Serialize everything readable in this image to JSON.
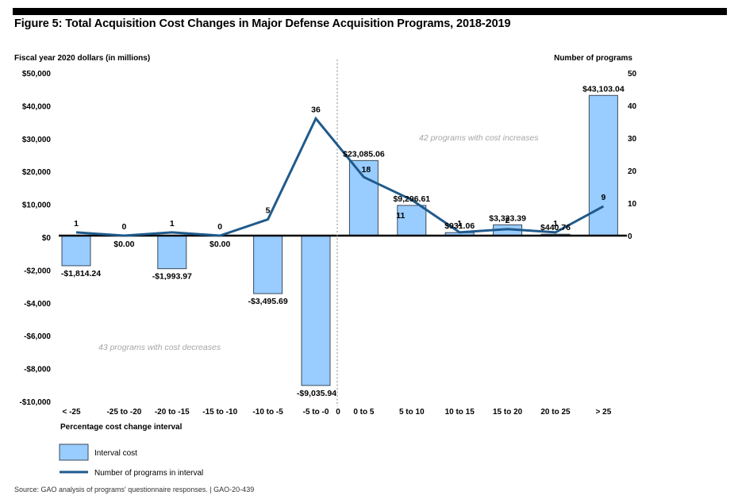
{
  "figure": {
    "title": "Figure 5: Total Acquisition Cost Changes in Major Defense Acquisition Programs, 2018-2019",
    "source": "Source: GAO analysis of programs' questionnaire responses.  |  GAO-20-439"
  },
  "colors": {
    "bar_fill": "#99ccff",
    "bar_stroke": "#3a4a5a",
    "line": "#1f5a8c",
    "zero_line": "#000000",
    "divider": "#999999",
    "note": "#a6a6a6"
  },
  "chart_data": {
    "type": "bar",
    "title": "Figure 5: Total Acquisition Cost Changes in Major Defense Acquisition Programs, 2018-2019",
    "xlabel": "Percentage cost change interval",
    "ylabel": "Fiscal year 2020  dollars (in millions)",
    "y2label": "Number of programs",
    "categories": [
      "< -25",
      "-25 to -20",
      "-20 to -15",
      "-15 to -10",
      "-10 to -5",
      "-5 to -0",
      "0 to 5",
      "5 to 10",
      "10 to 15",
      "15 to 20",
      "20 to 25",
      "> 25"
    ],
    "divider_label": "0",
    "series": [
      {
        "name": "Interval cost",
        "type": "bar",
        "axis": "left",
        "values": [
          -1814.24,
          0,
          -1993.97,
          0,
          -3495.69,
          -9035.94,
          23085.06,
          9296.61,
          931.06,
          3323.39,
          440.76,
          43103.04
        ],
        "labels": [
          "-$1,814.24",
          "$0.00",
          "-$1,993.97",
          "$0.00",
          "-$3,495.69",
          "-$9,035.94",
          "$23,085.06",
          "$9,296.61",
          "$931.06",
          "$3,323.39",
          "$440.76",
          "$43,103.04"
        ]
      },
      {
        "name": "Number of programs in interval",
        "type": "line",
        "axis": "right",
        "values": [
          1,
          0,
          1,
          0,
          5,
          36,
          18,
          11,
          1,
          2,
          1,
          9
        ],
        "labels": [
          "1",
          "0",
          "1",
          "0",
          "5",
          "36",
          "18",
          "11",
          "1",
          "2",
          "1",
          "9"
        ]
      }
    ],
    "y_left_ticks": [
      "$50,000",
      "$40,000",
      "$30,000",
      "$20,000",
      "$10,000",
      "$0",
      "-$2,000",
      "-$4,000",
      "-$6,000",
      "-$8,000",
      "-$10,000"
    ],
    "y_left_positive_range": [
      0,
      50000
    ],
    "y_left_negative_range": [
      -10000,
      0
    ],
    "y_right_ticks": [
      "50",
      "40",
      "30",
      "20",
      "10",
      "0"
    ],
    "y_right_range": [
      0,
      50
    ],
    "annotations": [
      "43 programs with cost decreases",
      "42 programs with cost increases"
    ],
    "legend": [
      "Interval cost",
      "Number of programs in interval"
    ],
    "legend_position": "bottom-left",
    "grid": false
  }
}
